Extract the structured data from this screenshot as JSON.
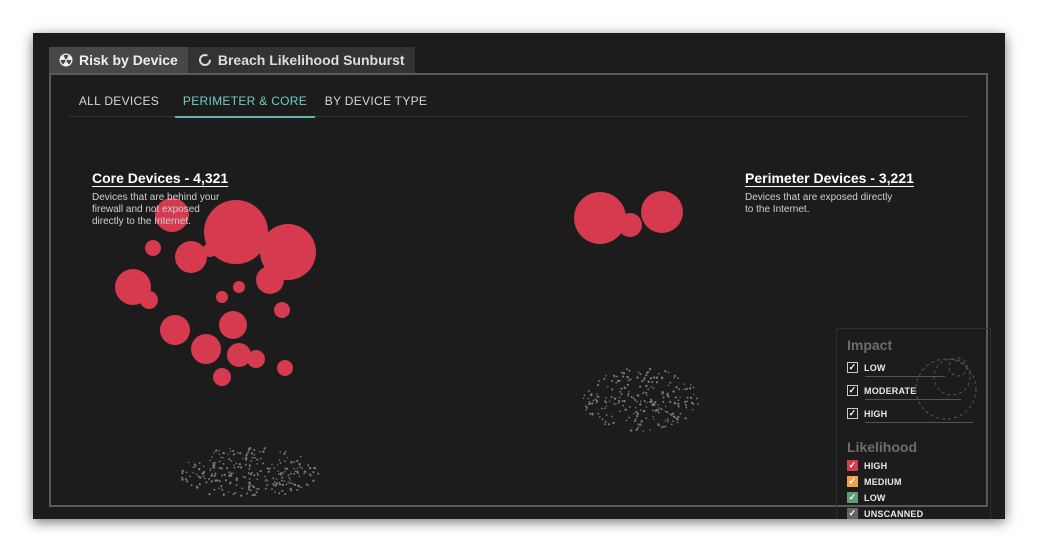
{
  "tabs": {
    "risk_by_device": "Risk by Device",
    "sunburst": "Breach Likelihood Sunburst"
  },
  "subtabs": {
    "all": "ALL DEVICES",
    "perimeter_core": "PERIMETER & CORE",
    "by_type": "BY DEVICE TYPE"
  },
  "core": {
    "title": "Core Devices - 4,321",
    "desc_line1": "Devices that are behind your",
    "desc_line2": "firewall and not exposed",
    "desc_line3": "directly to the Internet."
  },
  "perimeter": {
    "title": "Perimeter Devices - 3,221",
    "desc_line1": "Devices that are exposed directly",
    "desc_line2": "to the Internet."
  },
  "legend": {
    "impact_heading": "Impact",
    "impact_items": [
      "LOW",
      "MODERATE",
      "HIGH"
    ],
    "likelihood_heading": "Likelihood",
    "likelihood_items": [
      "HIGH",
      "MEDIUM",
      "LOW",
      "UNSCANNED"
    ]
  },
  "colors": {
    "high": "#d63a4e",
    "medium": "#eda24b",
    "low": "#5e9e73",
    "unscanned": "#666666",
    "accent": "#5cb8ae"
  },
  "icons": {
    "risk_tab": "radiation-icon",
    "sunburst_tab": "ring-icon",
    "checkbox": "check-icon"
  }
}
